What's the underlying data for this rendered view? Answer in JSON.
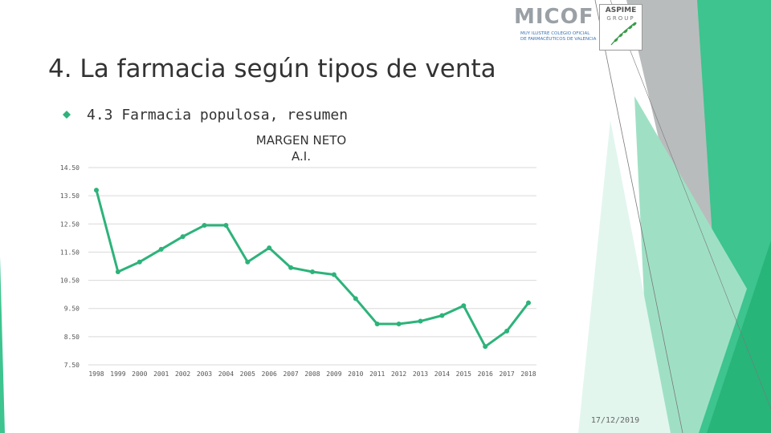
{
  "title": "4. La farmacia según tipos de venta",
  "bullet": {
    "icon": "diamond-bullet-icon",
    "text": "4.3 Farmacia populosa, resumen"
  },
  "logos": {
    "micof": {
      "text": "MICOF",
      "sub_line1": "MUY ILUSTRE COLEGIO OFICIAL",
      "sub_line2": "DE FARMACÉUTICOS DE VALENCIA"
    },
    "aspime": {
      "line1": "ASPIME",
      "line2": "GROUP"
    }
  },
  "footer": {
    "date": "17/12/2019"
  },
  "colors": {
    "series": "#2db37a",
    "accent_green": "#3ec48e",
    "grid": "#d9d9d9",
    "text": "#333333"
  },
  "chart_data": {
    "type": "line",
    "title": "MARGEN NETO\nA.I.",
    "title_lines": [
      "MARGEN NETO",
      "A.I."
    ],
    "xlabel": "",
    "ylabel": "",
    "grid": true,
    "legend": "none",
    "ylim": [
      7.5,
      14.5
    ],
    "y_ticks": [
      "14.50",
      "13.50",
      "12.50",
      "11.50",
      "10.50",
      "9.50",
      "8.50",
      "7.50"
    ],
    "y_tick_values": [
      14.5,
      13.5,
      12.5,
      11.5,
      10.5,
      9.5,
      8.5,
      7.5
    ],
    "categories": [
      "1998",
      "1999",
      "2000",
      "2001",
      "2002",
      "2003",
      "2004",
      "2005",
      "2006",
      "2007",
      "2008",
      "2009",
      "2010",
      "2011",
      "2012",
      "2013",
      "2014",
      "2015",
      "2016",
      "2017",
      "2018"
    ],
    "series": [
      {
        "values": [
          13.7,
          10.8,
          11.15,
          11.6,
          12.05,
          12.45,
          12.45,
          11.15,
          11.65,
          10.95,
          10.8,
          10.7,
          9.85,
          8.95,
          8.95,
          9.05,
          9.25,
          9.6,
          8.15,
          8.7,
          9.7
        ]
      }
    ]
  }
}
